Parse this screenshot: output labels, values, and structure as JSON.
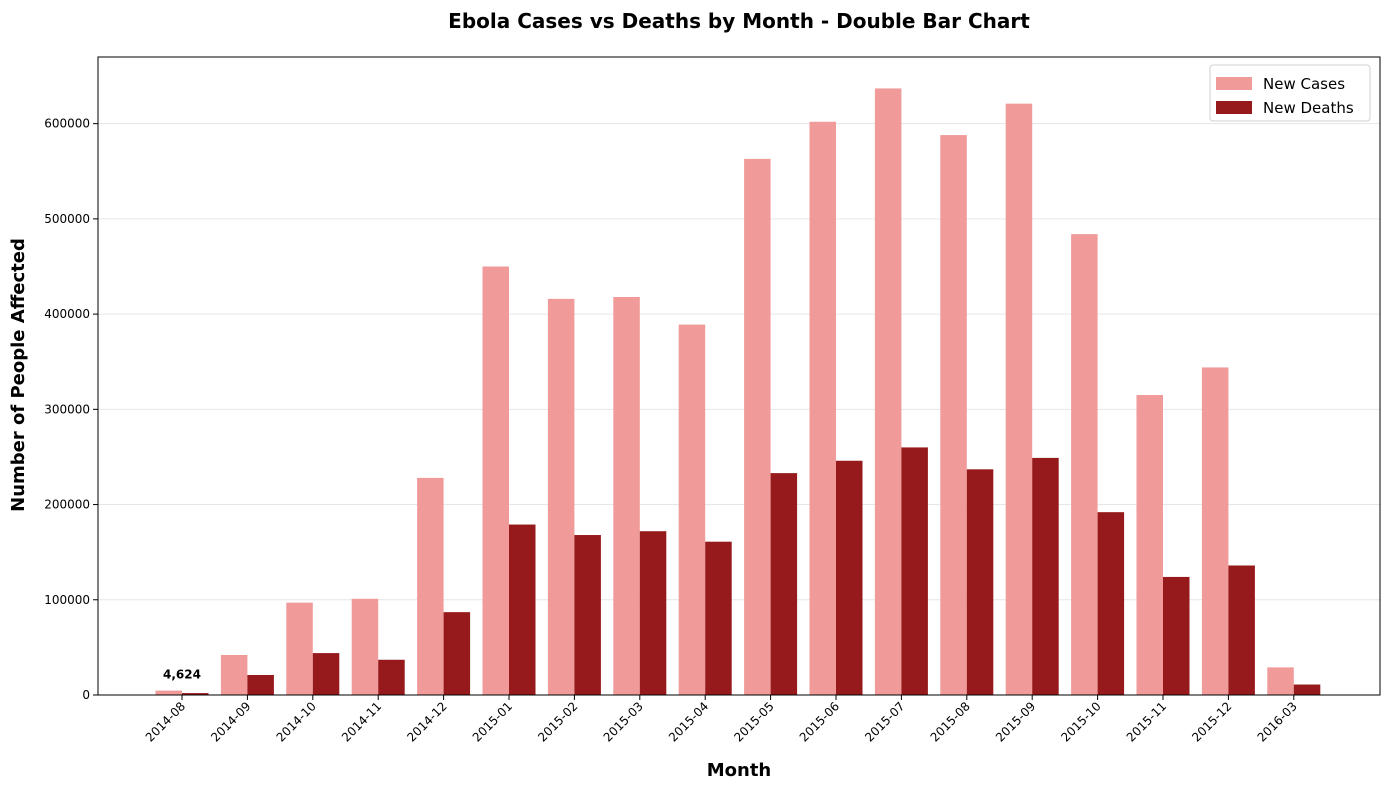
{
  "chart_data": {
    "type": "bar",
    "title": "Ebola Cases vs Deaths by Month - Double Bar Chart",
    "xlabel": "Month",
    "ylabel": "Number of People Affected",
    "categories": [
      "2014-08",
      "2014-09",
      "2014-10",
      "2014-11",
      "2014-12",
      "2015-01",
      "2015-02",
      "2015-03",
      "2015-04",
      "2015-05",
      "2015-06",
      "2015-07",
      "2015-08",
      "2015-09",
      "2015-10",
      "2015-11",
      "2015-12",
      "2016-03"
    ],
    "series": [
      {
        "name": "New Cases",
        "color": "#f19a9a",
        "values": [
          4624,
          42000,
          97000,
          101000,
          228000,
          450000,
          416000,
          418000,
          389000,
          563000,
          602000,
          637000,
          588000,
          621000,
          484000,
          315000,
          344000,
          29000
        ]
      },
      {
        "name": "New Deaths",
        "color": "#96191b",
        "values": [
          2000,
          21000,
          44000,
          37000,
          87000,
          179000,
          168000,
          172000,
          161000,
          233000,
          246000,
          260000,
          237000,
          249000,
          192000,
          124000,
          136000,
          11000
        ]
      }
    ],
    "ylim": [
      0,
      670000
    ],
    "yticks": [
      0,
      100000,
      200000,
      300000,
      400000,
      500000,
      600000
    ],
    "grid": "y",
    "legend_position": "top-right",
    "annotations": [
      {
        "category": "2014-08",
        "text": "4,624"
      }
    ]
  }
}
